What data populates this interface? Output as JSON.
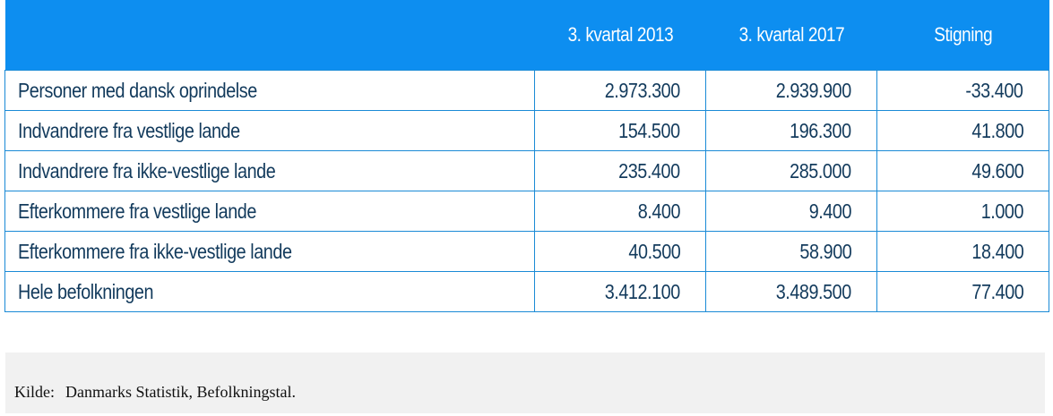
{
  "table": {
    "headers": [
      "",
      "3. kvartal 2013",
      "3. kvartal 2017",
      "Stigning"
    ],
    "rows": [
      {
        "label": "Personer med dansk oprindelse",
        "q2013": "2.973.300",
        "q2017": "2.939.900",
        "change": "-33.400"
      },
      {
        "label": "Indvandrere fra vestlige lande",
        "q2013": "154.500",
        "q2017": "196.300",
        "change": "41.800"
      },
      {
        "label": "Indvandrere fra ikke-vestlige lande",
        "q2013": "235.400",
        "q2017": "285.000",
        "change": "49.600"
      },
      {
        "label": "Efterkommere fra vestlige lande",
        "q2013": "8.400",
        "q2017": "9.400",
        "change": "1.000"
      },
      {
        "label": "Efterkommere fra ikke-vestlige lande",
        "q2013": "40.500",
        "q2017": "58.900",
        "change": "18.400"
      },
      {
        "label": "Hele befolkningen",
        "q2013": "3.412.100",
        "q2017": "3.489.500",
        "change": "77.400"
      }
    ]
  },
  "source": {
    "label": "Kilde:",
    "text": "Danmarks Statistik, Befolkningstal."
  },
  "colors": {
    "header_bg": "#0d8ef0",
    "header_text": "#ffffff",
    "cell_text": "#123a5c",
    "border": "#1a8ad6",
    "source_bg": "#f1f1f1"
  }
}
